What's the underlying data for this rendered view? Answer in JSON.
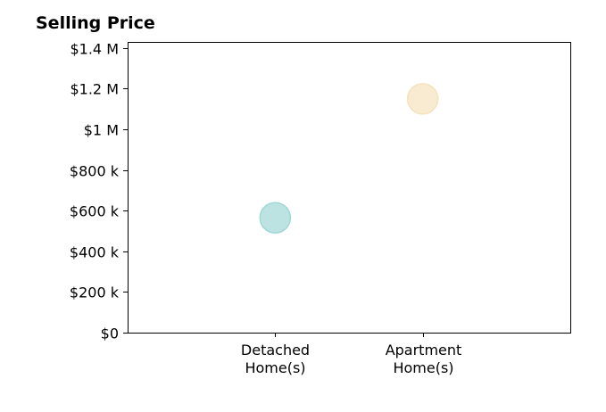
{
  "chart_data": {
    "type": "scatter",
    "title": "Selling Price",
    "xlabel": "",
    "ylabel": "",
    "categories": [
      [
        "Detached",
        "Home(s)"
      ],
      [
        "Apartment",
        "Home(s)"
      ]
    ],
    "x_tick_positions": [
      1,
      2
    ],
    "xlim": [
      0,
      3
    ],
    "ylim": [
      0,
      1430000
    ],
    "y_ticks": [
      0,
      200000,
      400000,
      600000,
      800000,
      1000000,
      1200000,
      1400000
    ],
    "y_tick_labels": [
      "$0",
      "$200 k",
      "$400 k",
      "$600 k",
      "$800 k",
      "$1 M",
      "$1.2 M",
      "$1.4 M"
    ],
    "points": [
      {
        "category": "Detached Home(s)",
        "x": 1,
        "y": 565000,
        "color": "#9fd7d4"
      },
      {
        "category": "Apartment Home(s)",
        "x": 2,
        "y": 1150000,
        "color": "#f5e3bd"
      }
    ],
    "grid": false,
    "legend": "none"
  }
}
